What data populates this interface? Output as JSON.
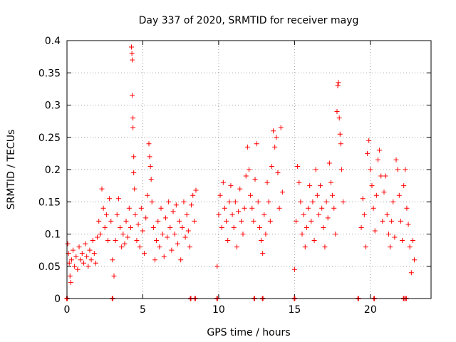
{
  "chart_data": {
    "type": "scatter",
    "title": "Day 337 of 2020, SRMTID for receiver mayg",
    "xlabel": "GPS time / hours",
    "ylabel": "SRMTID / TECUs",
    "xlim": [
      0,
      24
    ],
    "ylim": [
      0,
      0.4
    ],
    "xticks": [
      0,
      5,
      10,
      15,
      20
    ],
    "xtick_labels": [
      "0",
      "5",
      "10",
      "15",
      "20"
    ],
    "yticks": [
      0,
      0.05,
      0.1,
      0.15,
      0.2,
      0.25,
      0.3,
      0.35,
      0.4
    ],
    "ytick_labels": [
      "0",
      "0.05",
      "0.1",
      "0.15",
      "0.2",
      "0.25",
      "0.3",
      "0.35",
      "0.4"
    ],
    "grid": true,
    "marker": "plus",
    "series": [
      {
        "name": "SRMTID",
        "color": "#ff0000",
        "points": [
          [
            0.05,
            0.085
          ],
          [
            0.1,
            0.07
          ],
          [
            0.15,
            0.055
          ],
          [
            0.2,
            0.035
          ],
          [
            0.25,
            0.025
          ],
          [
            0.3,
            0.06
          ],
          [
            0.4,
            0.075
          ],
          [
            0.5,
            0.05
          ],
          [
            0.6,
            0.065
          ],
          [
            0.7,
            0.045
          ],
          [
            0.8,
            0.08
          ],
          [
            0.9,
            0.06
          ],
          [
            1.0,
            0.07
          ],
          [
            1.1,
            0.055
          ],
          [
            1.2,
            0.085
          ],
          [
            1.3,
            0.065
          ],
          [
            1.4,
            0.05
          ],
          [
            1.5,
            0.075
          ],
          [
            1.6,
            0.06
          ],
          [
            1.7,
            0.09
          ],
          [
            1.8,
            0.07
          ],
          [
            1.9,
            0.055
          ],
          [
            2.0,
            0.095
          ],
          [
            2.1,
            0.12
          ],
          [
            2.2,
            0.1
          ],
          [
            2.3,
            0.17
          ],
          [
            2.4,
            0.14
          ],
          [
            2.5,
            0.11
          ],
          [
            2.6,
            0.13
          ],
          [
            2.7,
            0.09
          ],
          [
            2.8,
            0.155
          ],
          [
            2.9,
            0.12
          ],
          [
            3.0,
            0.06
          ],
          [
            3.1,
            0.035
          ],
          [
            3.2,
            0.09
          ],
          [
            3.3,
            0.13
          ],
          [
            3.4,
            0.155
          ],
          [
            3.5,
            0.11
          ],
          [
            3.6,
            0.08
          ],
          [
            3.7,
            0.1
          ],
          [
            3.8,
            0.085
          ],
          [
            3.9,
            0.12
          ],
          [
            4.0,
            0.095
          ],
          [
            4.1,
            0.14
          ],
          [
            4.2,
            0.11
          ],
          [
            4.25,
            0.39
          ],
          [
            4.28,
            0.38
          ],
          [
            4.3,
            0.37
          ],
          [
            4.3,
            0.315
          ],
          [
            4.35,
            0.28
          ],
          [
            4.35,
            0.265
          ],
          [
            4.4,
            0.22
          ],
          [
            4.4,
            0.195
          ],
          [
            4.45,
            0.17
          ],
          [
            4.5,
            0.13
          ],
          [
            4.6,
            0.09
          ],
          [
            4.7,
            0.115
          ],
          [
            4.8,
            0.08
          ],
          [
            4.9,
            0.14
          ],
          [
            5.0,
            0.105
          ],
          [
            5.1,
            0.07
          ],
          [
            5.2,
            0.125
          ],
          [
            5.3,
            0.16
          ],
          [
            5.4,
            0.24
          ],
          [
            5.45,
            0.22
          ],
          [
            5.5,
            0.205
          ],
          [
            5.55,
            0.185
          ],
          [
            5.6,
            0.15
          ],
          [
            5.7,
            0.11
          ],
          [
            5.8,
            0.06
          ],
          [
            5.9,
            0.09
          ],
          [
            6.0,
            0.12
          ],
          [
            6.1,
            0.08
          ],
          [
            6.2,
            0.14
          ],
          [
            6.3,
            0.1
          ],
          [
            6.4,
            0.065
          ],
          [
            6.5,
            0.125
          ],
          [
            6.6,
            0.095
          ],
          [
            6.7,
            0.15
          ],
          [
            6.8,
            0.11
          ],
          [
            6.9,
            0.075
          ],
          [
            7.0,
            0.135
          ],
          [
            7.1,
            0.1
          ],
          [
            7.2,
            0.145
          ],
          [
            7.3,
            0.085
          ],
          [
            7.4,
            0.12
          ],
          [
            7.5,
            0.06
          ],
          [
            7.6,
            0.11
          ],
          [
            7.7,
            0.15
          ],
          [
            7.8,
            0.095
          ],
          [
            7.9,
            0.13
          ],
          [
            8.0,
            0.105
          ],
          [
            8.1,
            0.08
          ],
          [
            8.2,
            0.145
          ],
          [
            8.3,
            0.16
          ],
          [
            8.4,
            0.12
          ],
          [
            8.5,
            0.168
          ],
          [
            9.9,
            0.05
          ],
          [
            10.0,
            0.13
          ],
          [
            10.1,
            0.16
          ],
          [
            10.2,
            0.11
          ],
          [
            10.3,
            0.18
          ],
          [
            10.4,
            0.14
          ],
          [
            10.5,
            0.12
          ],
          [
            10.6,
            0.09
          ],
          [
            10.7,
            0.15
          ],
          [
            10.8,
            0.175
          ],
          [
            10.9,
            0.13
          ],
          [
            11.0,
            0.11
          ],
          [
            11.1,
            0.15
          ],
          [
            11.2,
            0.08
          ],
          [
            11.3,
            0.135
          ],
          [
            11.4,
            0.17
          ],
          [
            11.5,
            0.12
          ],
          [
            11.6,
            0.1
          ],
          [
            11.7,
            0.14
          ],
          [
            11.8,
            0.19
          ],
          [
            11.9,
            0.235
          ],
          [
            12.0,
            0.2
          ],
          [
            12.1,
            0.16
          ],
          [
            12.2,
            0.14
          ],
          [
            12.3,
            0.12
          ],
          [
            12.4,
            0.185
          ],
          [
            12.5,
            0.24
          ],
          [
            12.6,
            0.15
          ],
          [
            12.7,
            0.11
          ],
          [
            12.8,
            0.09
          ],
          [
            12.9,
            0.07
          ],
          [
            13.0,
            0.13
          ],
          [
            13.1,
            0.1
          ],
          [
            13.2,
            0.18
          ],
          [
            13.3,
            0.15
          ],
          [
            13.4,
            0.12
          ],
          [
            13.5,
            0.205
          ],
          [
            13.6,
            0.26
          ],
          [
            13.7,
            0.235
          ],
          [
            13.8,
            0.25
          ],
          [
            13.9,
            0.195
          ],
          [
            14.0,
            0.14
          ],
          [
            14.1,
            0.265
          ],
          [
            14.2,
            0.165
          ],
          [
            15.0,
            0.045
          ],
          [
            15.1,
            0.12
          ],
          [
            15.2,
            0.205
          ],
          [
            15.3,
            0.18
          ],
          [
            15.4,
            0.15
          ],
          [
            15.5,
            0.1
          ],
          [
            15.6,
            0.13
          ],
          [
            15.7,
            0.08
          ],
          [
            15.8,
            0.11
          ],
          [
            15.9,
            0.14
          ],
          [
            16.0,
            0.175
          ],
          [
            16.1,
            0.12
          ],
          [
            16.2,
            0.15
          ],
          [
            16.3,
            0.09
          ],
          [
            16.4,
            0.2
          ],
          [
            16.5,
            0.16
          ],
          [
            16.6,
            0.13
          ],
          [
            16.7,
            0.175
          ],
          [
            16.8,
            0.14
          ],
          [
            16.9,
            0.11
          ],
          [
            17.0,
            0.08
          ],
          [
            17.1,
            0.15
          ],
          [
            17.2,
            0.125
          ],
          [
            17.3,
            0.21
          ],
          [
            17.4,
            0.18
          ],
          [
            17.5,
            0.16
          ],
          [
            17.6,
            0.14
          ],
          [
            17.7,
            0.1
          ],
          [
            17.8,
            0.29
          ],
          [
            17.85,
            0.33
          ],
          [
            17.9,
            0.335
          ],
          [
            17.95,
            0.28
          ],
          [
            18.0,
            0.255
          ],
          [
            18.05,
            0.24
          ],
          [
            18.1,
            0.2
          ],
          [
            18.2,
            0.15
          ],
          [
            19.4,
            0.11
          ],
          [
            19.5,
            0.155
          ],
          [
            19.6,
            0.13
          ],
          [
            19.7,
            0.08
          ],
          [
            19.8,
            0.225
          ],
          [
            19.9,
            0.245
          ],
          [
            20.0,
            0.2
          ],
          [
            20.1,
            0.175
          ],
          [
            20.2,
            0.14
          ],
          [
            20.3,
            0.105
          ],
          [
            20.4,
            0.16
          ],
          [
            20.5,
            0.215
          ],
          [
            20.6,
            0.23
          ],
          [
            20.7,
            0.19
          ],
          [
            20.8,
            0.12
          ],
          [
            20.9,
            0.165
          ],
          [
            21.0,
            0.19
          ],
          [
            21.1,
            0.13
          ],
          [
            21.2,
            0.1
          ],
          [
            21.3,
            0.08
          ],
          [
            21.4,
            0.12
          ],
          [
            21.5,
            0.15
          ],
          [
            21.6,
            0.095
          ],
          [
            21.7,
            0.215
          ],
          [
            21.8,
            0.2
          ],
          [
            21.9,
            0.16
          ],
          [
            22.0,
            0.12
          ],
          [
            22.1,
            0.09
          ],
          [
            22.2,
            0.175
          ],
          [
            22.3,
            0.2
          ],
          [
            22.4,
            0.14
          ],
          [
            22.5,
            0.115
          ],
          [
            22.6,
            0.08
          ],
          [
            22.7,
            0.04
          ],
          [
            22.8,
            0.09
          ],
          [
            22.9,
            0.06
          ]
        ]
      }
    ],
    "zero_markers_x": [
      0,
      3.0,
      8.15,
      8.45,
      9.9,
      12.35,
      12.9,
      15.0,
      19.2,
      20.25,
      22.2,
      22.35
    ]
  }
}
